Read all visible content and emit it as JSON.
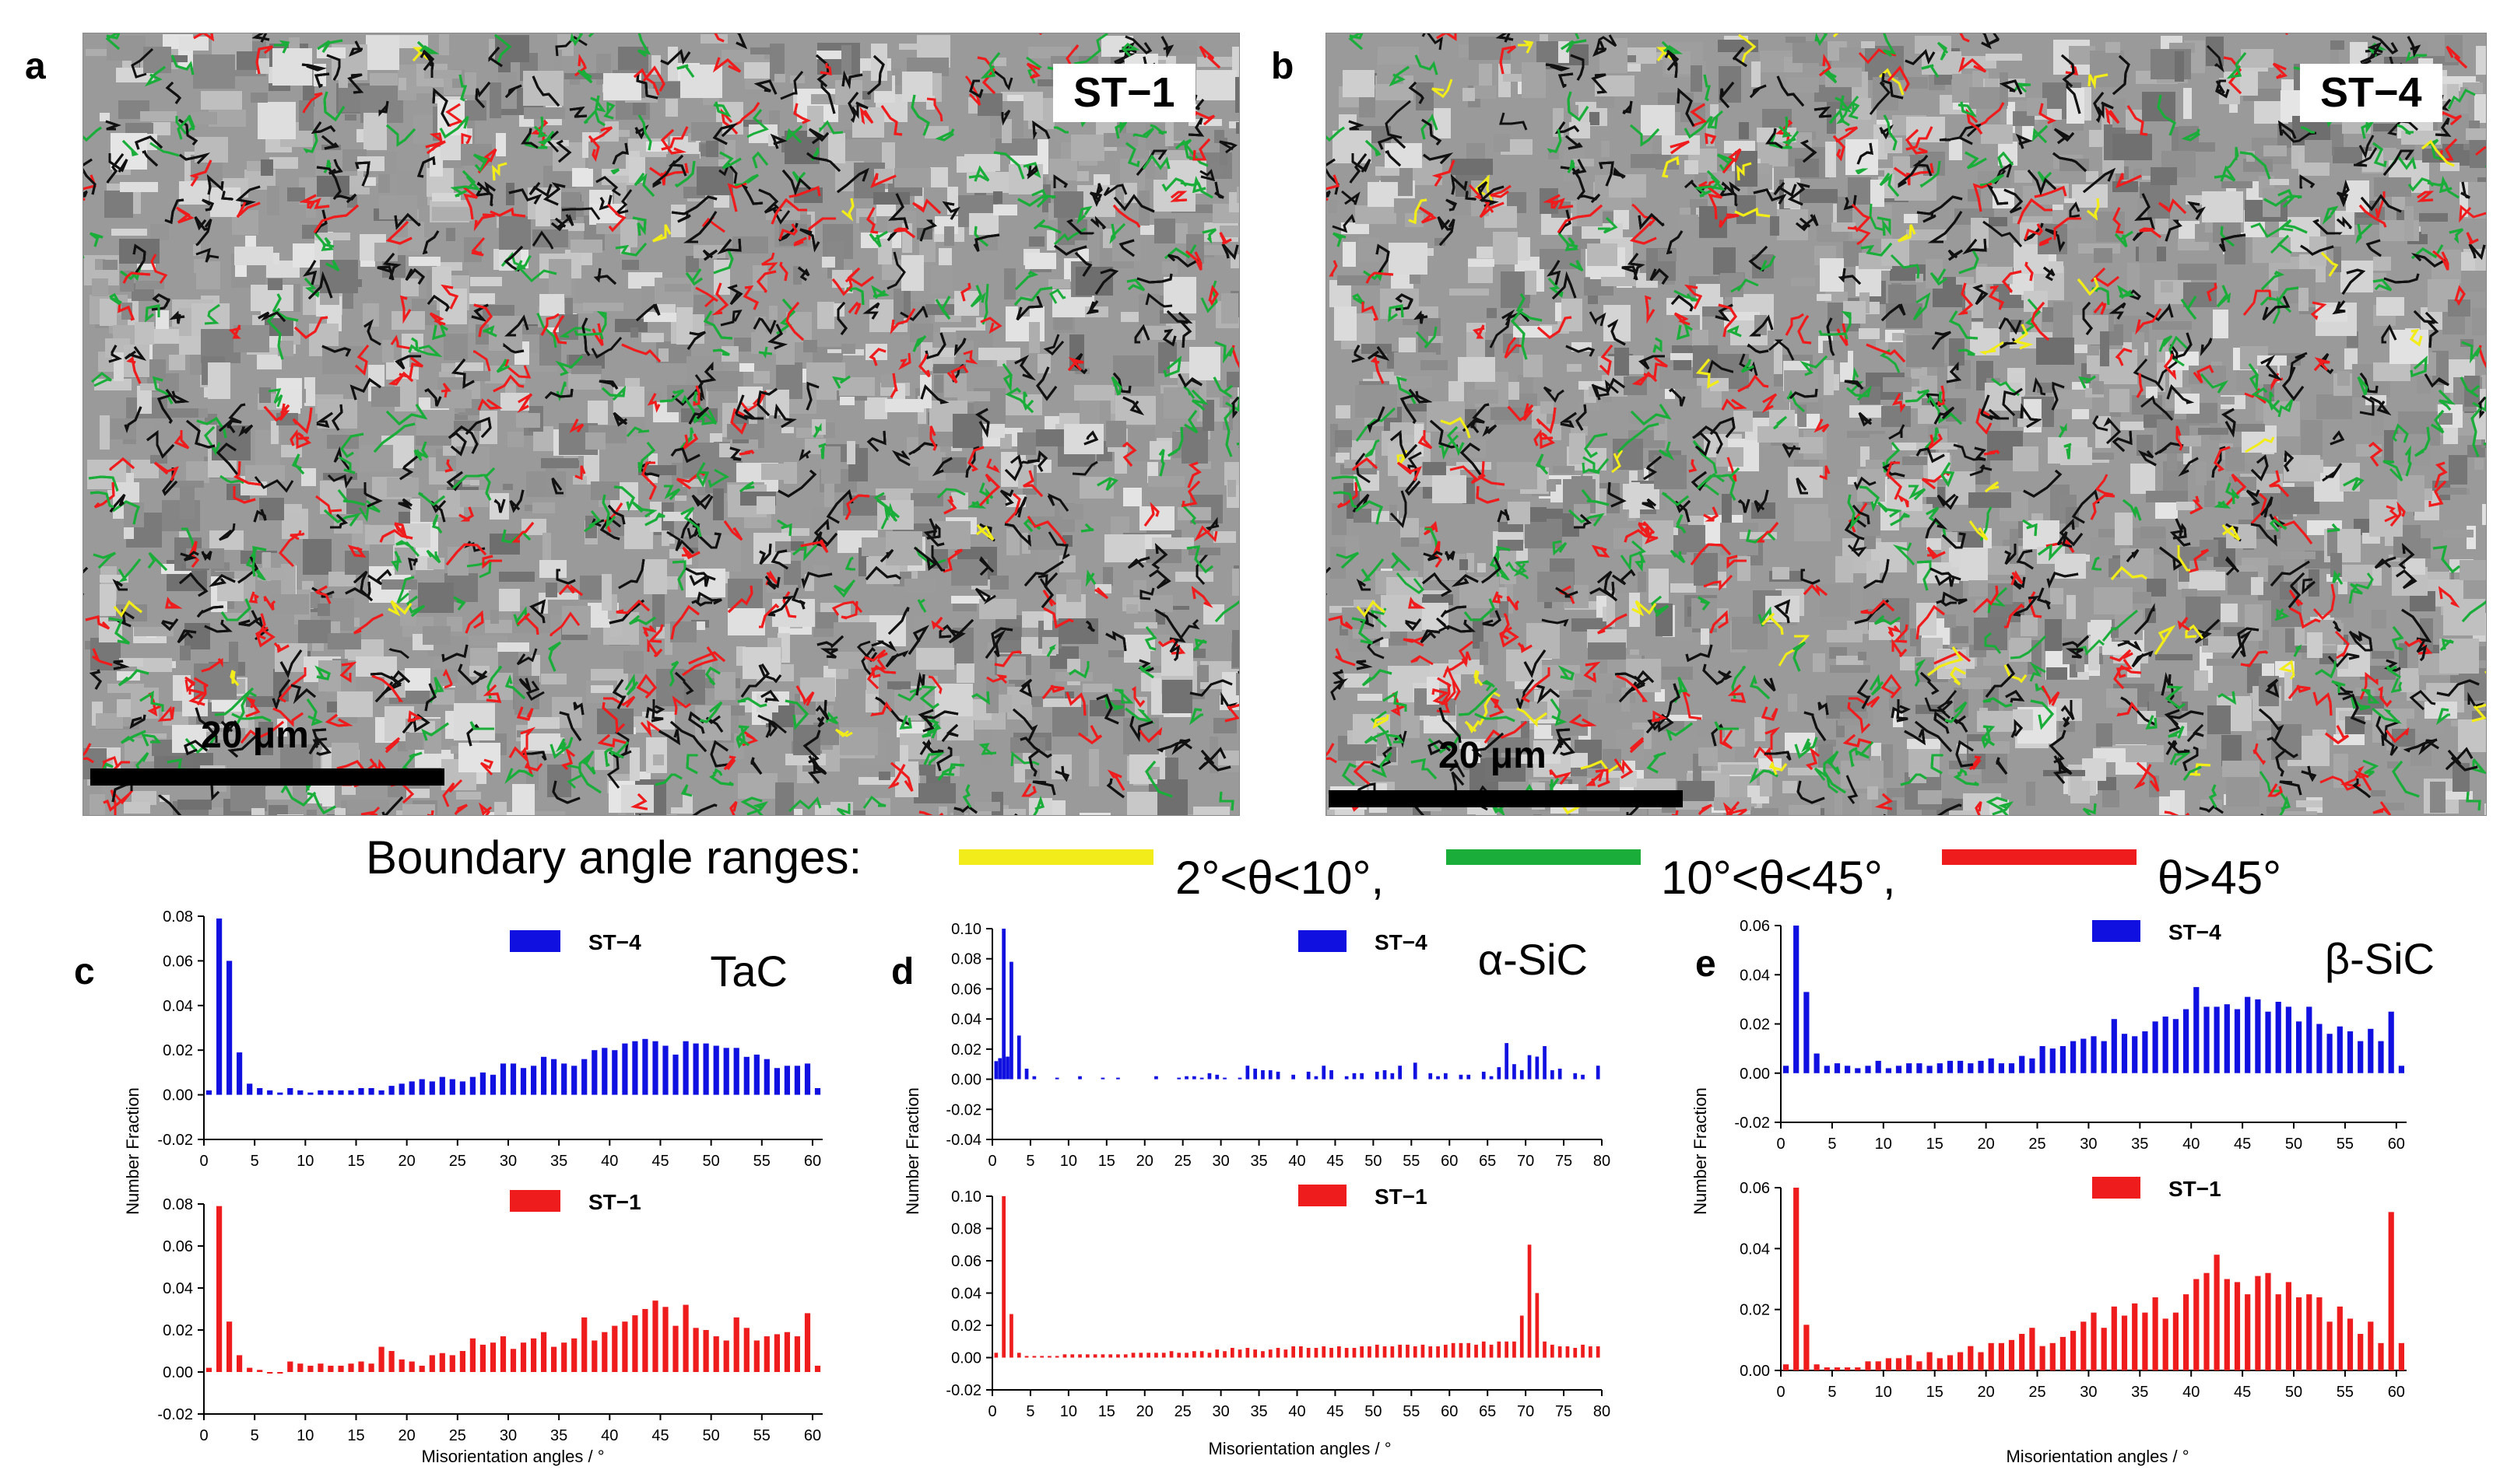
{
  "panels": {
    "a": {
      "letter": "a",
      "sample": "ST−1",
      "scale": "20 μm"
    },
    "b": {
      "letter": "b",
      "sample": "ST−4",
      "scale": "20 μm"
    }
  },
  "legend": {
    "title": "Boundary angle ranges:",
    "items": [
      {
        "label": "2°<θ<10°,",
        "color": "#f2ec1a"
      },
      {
        "label": "10°<θ<45°,",
        "color": "#1aad3a"
      },
      {
        "label": "θ>45°",
        "color": "#ee1c1c"
      }
    ]
  },
  "colors": {
    "st4": "#1010e0",
    "st1": "#ee1c1c"
  },
  "chart_data": [
    {
      "panel": "c",
      "type": "bar",
      "title": "TaC",
      "xlabel": "Misorientation angles / °",
      "ylabel": "Number Fraction",
      "xlim": [
        0,
        61
      ],
      "xticks": [
        0,
        5,
        10,
        15,
        20,
        25,
        30,
        35,
        40,
        45,
        50,
        55,
        60
      ],
      "series": [
        {
          "name": "ST−4",
          "ylim": [
            -0.02,
            0.08
          ],
          "yticks": [
            "-0.02",
            "0.00",
            "0.02",
            "0.04",
            "0.06",
            "0.08"
          ],
          "x": [
            0.5,
            1.5,
            2.5,
            3.5,
            4.5,
            5.5,
            6.5,
            7.5,
            8.5,
            9.5,
            10.5,
            11.5,
            12.5,
            13.5,
            14.5,
            15.5,
            16.5,
            17.5,
            18.5,
            19.5,
            20.5,
            21.5,
            22.5,
            23.5,
            24.5,
            25.5,
            26.5,
            27.5,
            28.5,
            29.5,
            30.5,
            31.5,
            32.5,
            33.5,
            34.5,
            35.5,
            36.5,
            37.5,
            38.5,
            39.5,
            40.5,
            41.5,
            42.5,
            43.5,
            44.5,
            45.5,
            46.5,
            47.5,
            48.5,
            49.5,
            50.5,
            51.5,
            52.5,
            53.5,
            54.5,
            55.5,
            56.5,
            57.5,
            58.5,
            59.5,
            60.5
          ],
          "values": [
            0.002,
            0.079,
            0.06,
            0.019,
            0.005,
            0.003,
            0.002,
            0.001,
            0.003,
            0.002,
            0.001,
            0.002,
            0.002,
            0.002,
            0.002,
            0.003,
            0.003,
            0.002,
            0.004,
            0.005,
            0.006,
            0.007,
            0.006,
            0.008,
            0.007,
            0.006,
            0.008,
            0.01,
            0.009,
            0.014,
            0.014,
            0.012,
            0.013,
            0.017,
            0.016,
            0.014,
            0.013,
            0.016,
            0.02,
            0.021,
            0.02,
            0.023,
            0.024,
            0.025,
            0.024,
            0.022,
            0.018,
            0.024,
            0.023,
            0.023,
            0.022,
            0.021,
            0.021,
            0.017,
            0.018,
            0.016,
            0.012,
            0.013,
            0.013,
            0.014,
            0.003
          ]
        },
        {
          "name": "ST−1",
          "ylim": [
            -0.02,
            0.08
          ],
          "yticks": [
            "-0.02",
            "0.00",
            "0.02",
            "0.04",
            "0.06",
            "0.08"
          ],
          "x": [
            0.5,
            1.5,
            2.5,
            3.5,
            4.5,
            5.5,
            6.5,
            7.5,
            8.5,
            9.5,
            10.5,
            11.5,
            12.5,
            13.5,
            14.5,
            15.5,
            16.5,
            17.5,
            18.5,
            19.5,
            20.5,
            21.5,
            22.5,
            23.5,
            24.5,
            25.5,
            26.5,
            27.5,
            28.5,
            29.5,
            30.5,
            31.5,
            32.5,
            33.5,
            34.5,
            35.5,
            36.5,
            37.5,
            38.5,
            39.5,
            40.5,
            41.5,
            42.5,
            43.5,
            44.5,
            45.5,
            46.5,
            47.5,
            48.5,
            49.5,
            50.5,
            51.5,
            52.5,
            53.5,
            54.5,
            55.5,
            56.5,
            57.5,
            58.5,
            59.5,
            60.5
          ],
          "values": [
            0.002,
            0.079,
            0.024,
            0.008,
            0.002,
            0.001,
            0,
            0,
            0.005,
            0.004,
            0.003,
            0.004,
            0.003,
            0.003,
            0.004,
            0.005,
            0.004,
            0.012,
            0.01,
            0.006,
            0.005,
            0.003,
            0.008,
            0.009,
            0.008,
            0.01,
            0.016,
            0.013,
            0.014,
            0.017,
            0.011,
            0.014,
            0.016,
            0.019,
            0.012,
            0.014,
            0.016,
            0.026,
            0.015,
            0.019,
            0.022,
            0.024,
            0.027,
            0.03,
            0.034,
            0.031,
            0.022,
            0.032,
            0.021,
            0.02,
            0.017,
            0.015,
            0.026,
            0.021,
            0.015,
            0.017,
            0.018,
            0.019,
            0.017,
            0.028,
            0.003
          ]
        }
      ]
    },
    {
      "panel": "d",
      "type": "bar",
      "title": "α-SiC",
      "xlabel": "Misorientation angles / °",
      "ylabel": "Number Fraction",
      "xlim": [
        0,
        80
      ],
      "xticks": [
        0,
        5,
        10,
        15,
        20,
        25,
        30,
        35,
        40,
        45,
        50,
        55,
        60,
        65,
        70,
        75,
        80
      ],
      "series": [
        {
          "name": "ST−4",
          "ylim": [
            -0.04,
            0.1
          ],
          "yticks": [
            "-0.04",
            "-0.02",
            "0.00",
            "0.02",
            "0.04",
            "0.06",
            "0.08",
            "0.10"
          ],
          "x": [
            0.5,
            1.0,
            1.5,
            2.0,
            2.5,
            3.5,
            4.5,
            5.5,
            8.5,
            11.5,
            14.5,
            16.5,
            21.5,
            24.5,
            25.5,
            26.5,
            27.5,
            28.5,
            29.5,
            30.5,
            32.5,
            33.5,
            34.5,
            35.5,
            36.5,
            37.5,
            39.5,
            41.5,
            42.5,
            43.5,
            44.5,
            46.5,
            47.5,
            48.5,
            50.5,
            51.5,
            52.5,
            53.5,
            55.5,
            57.5,
            58.5,
            59.5,
            61.5,
            62.5,
            64.5,
            65.5,
            66.5,
            67.5,
            68.5,
            69.5,
            70.5,
            71.5,
            72.5,
            73.5,
            74.5,
            76.5,
            77.5,
            79.5
          ],
          "values": [
            0.012,
            0.014,
            0.1,
            0.015,
            0.078,
            0.029,
            0.007,
            0.002,
            0.001,
            0.002,
            0.001,
            0.001,
            0.002,
            0.001,
            0.002,
            0.002,
            0.001,
            0.004,
            0.003,
            0.001,
            0.001,
            0.009,
            0.007,
            0.006,
            0.006,
            0.005,
            0.003,
            0.005,
            0.002,
            0.009,
            0.006,
            0.002,
            0.004,
            0.004,
            0.005,
            0.006,
            0.004,
            0.009,
            0.011,
            0.004,
            0.002,
            0.004,
            0.003,
            0.003,
            0.005,
            0.002,
            0.008,
            0.024,
            0.01,
            0.006,
            0.016,
            0.015,
            0.022,
            0.006,
            0.007,
            0.004,
            0.003,
            0.009
          ]
        },
        {
          "name": "ST−1",
          "ylim": [
            -0.02,
            0.1
          ],
          "yticks": [
            "-0.02",
            "0.00",
            "0.02",
            "0.04",
            "0.06",
            "0.08",
            "0.10"
          ],
          "x": [
            0.5,
            1.5,
            2.5,
            3.5,
            4.5,
            5.5,
            6.5,
            7.5,
            8.5,
            9.5,
            10.5,
            11.5,
            12.5,
            13.5,
            14.5,
            15.5,
            16.5,
            17.5,
            18.5,
            19.5,
            20.5,
            21.5,
            22.5,
            23.5,
            24.5,
            25.5,
            26.5,
            27.5,
            28.5,
            29.5,
            30.5,
            31.5,
            32.5,
            33.5,
            34.5,
            35.5,
            36.5,
            37.5,
            38.5,
            39.5,
            40.5,
            41.5,
            42.5,
            43.5,
            44.5,
            45.5,
            46.5,
            47.5,
            48.5,
            49.5,
            50.5,
            51.5,
            52.5,
            53.5,
            54.5,
            55.5,
            56.5,
            57.5,
            58.5,
            59.5,
            60.5,
            61.5,
            62.5,
            63.5,
            64.5,
            65.5,
            66.5,
            67.5,
            68.5,
            69.5,
            70.5,
            71.5,
            72.5,
            73.5,
            74.5,
            75.5,
            76.5,
            77.5,
            78.5,
            79.5
          ],
          "values": [
            0.003,
            0.1,
            0.027,
            0.003,
            0.001,
            0.001,
            0.001,
            0.001,
            0.001,
            0.002,
            0.002,
            0.002,
            0.002,
            0.002,
            0.002,
            0.002,
            0.002,
            0.002,
            0.003,
            0.003,
            0.003,
            0.003,
            0.003,
            0.004,
            0.003,
            0.003,
            0.004,
            0.004,
            0.003,
            0.005,
            0.004,
            0.006,
            0.005,
            0.006,
            0.005,
            0.004,
            0.005,
            0.006,
            0.005,
            0.007,
            0.007,
            0.006,
            0.006,
            0.007,
            0.006,
            0.007,
            0.006,
            0.006,
            0.007,
            0.007,
            0.008,
            0.007,
            0.007,
            0.008,
            0.008,
            0.007,
            0.008,
            0.007,
            0.007,
            0.008,
            0.009,
            0.009,
            0.009,
            0.008,
            0.01,
            0.008,
            0.01,
            0.01,
            0.01,
            0.026,
            0.07,
            0.04,
            0.01,
            0.008,
            0.007,
            0.007,
            0.006,
            0.008,
            0.007,
            0.007
          ]
        }
      ]
    },
    {
      "panel": "e",
      "type": "bar",
      "title": "β-SiC",
      "xlabel": "Misorientation angles / °",
      "ylabel": "Number Fraction",
      "xlim": [
        0,
        61
      ],
      "xticks": [
        0,
        5,
        10,
        15,
        20,
        25,
        30,
        35,
        40,
        45,
        50,
        55,
        60
      ],
      "series": [
        {
          "name": "ST−4",
          "ylim": [
            -0.02,
            0.06
          ],
          "yticks": [
            "-0.02",
            "0.00",
            "0.02",
            "0.04",
            "0.06"
          ],
          "x": [
            0.5,
            1.5,
            2.5,
            3.5,
            4.5,
            5.5,
            6.5,
            7.5,
            8.5,
            9.5,
            10.5,
            11.5,
            12.5,
            13.5,
            14.5,
            15.5,
            16.5,
            17.5,
            18.5,
            19.5,
            20.5,
            21.5,
            22.5,
            23.5,
            24.5,
            25.5,
            26.5,
            27.5,
            28.5,
            29.5,
            30.5,
            31.5,
            32.5,
            33.5,
            34.5,
            35.5,
            36.5,
            37.5,
            38.5,
            39.5,
            40.5,
            41.5,
            42.5,
            43.5,
            44.5,
            45.5,
            46.5,
            47.5,
            48.5,
            49.5,
            50.5,
            51.5,
            52.5,
            53.5,
            54.5,
            55.5,
            56.5,
            57.5,
            58.5,
            59.5,
            60.5
          ],
          "values": [
            0.003,
            0.06,
            0.033,
            0.008,
            0.003,
            0.004,
            0.003,
            0.002,
            0.003,
            0.005,
            0.002,
            0.003,
            0.004,
            0.004,
            0.003,
            0.004,
            0.005,
            0.005,
            0.004,
            0.005,
            0.006,
            0.004,
            0.004,
            0.007,
            0.006,
            0.011,
            0.01,
            0.011,
            0.013,
            0.014,
            0.015,
            0.013,
            0.022,
            0.016,
            0.015,
            0.017,
            0.021,
            0.023,
            0.022,
            0.026,
            0.035,
            0.027,
            0.027,
            0.028,
            0.026,
            0.031,
            0.03,
            0.025,
            0.029,
            0.027,
            0.021,
            0.027,
            0.02,
            0.016,
            0.019,
            0.017,
            0.013,
            0.018,
            0.013,
            0.025,
            0.003
          ]
        },
        {
          "name": "ST−1",
          "ylim": [
            0,
            0.06
          ],
          "yticks": [
            "0.00",
            "0.02",
            "0.04",
            "0.06"
          ],
          "x": [
            0.5,
            1.5,
            2.5,
            3.5,
            4.5,
            5.5,
            6.5,
            7.5,
            8.5,
            9.5,
            10.5,
            11.5,
            12.5,
            13.5,
            14.5,
            15.5,
            16.5,
            17.5,
            18.5,
            19.5,
            20.5,
            21.5,
            22.5,
            23.5,
            24.5,
            25.5,
            26.5,
            27.5,
            28.5,
            29.5,
            30.5,
            31.5,
            32.5,
            33.5,
            34.5,
            35.5,
            36.5,
            37.5,
            38.5,
            39.5,
            40.5,
            41.5,
            42.5,
            43.5,
            44.5,
            45.5,
            46.5,
            47.5,
            48.5,
            49.5,
            50.5,
            51.5,
            52.5,
            53.5,
            54.5,
            55.5,
            56.5,
            57.5,
            58.5,
            59.5,
            60.5
          ],
          "values": [
            0.002,
            0.06,
            0.015,
            0.002,
            0.001,
            0.001,
            0.001,
            0.001,
            0.003,
            0.003,
            0.004,
            0.004,
            0.005,
            0.003,
            0.006,
            0.004,
            0.005,
            0.006,
            0.008,
            0.006,
            0.009,
            0.009,
            0.01,
            0.012,
            0.014,
            0.008,
            0.009,
            0.011,
            0.013,
            0.016,
            0.019,
            0.014,
            0.021,
            0.018,
            0.022,
            0.019,
            0.024,
            0.017,
            0.019,
            0.025,
            0.03,
            0.032,
            0.038,
            0.03,
            0.029,
            0.025,
            0.031,
            0.032,
            0.025,
            0.029,
            0.024,
            0.025,
            0.024,
            0.016,
            0.021,
            0.017,
            0.012,
            0.016,
            0.009,
            0.052,
            0.009
          ]
        }
      ]
    }
  ]
}
